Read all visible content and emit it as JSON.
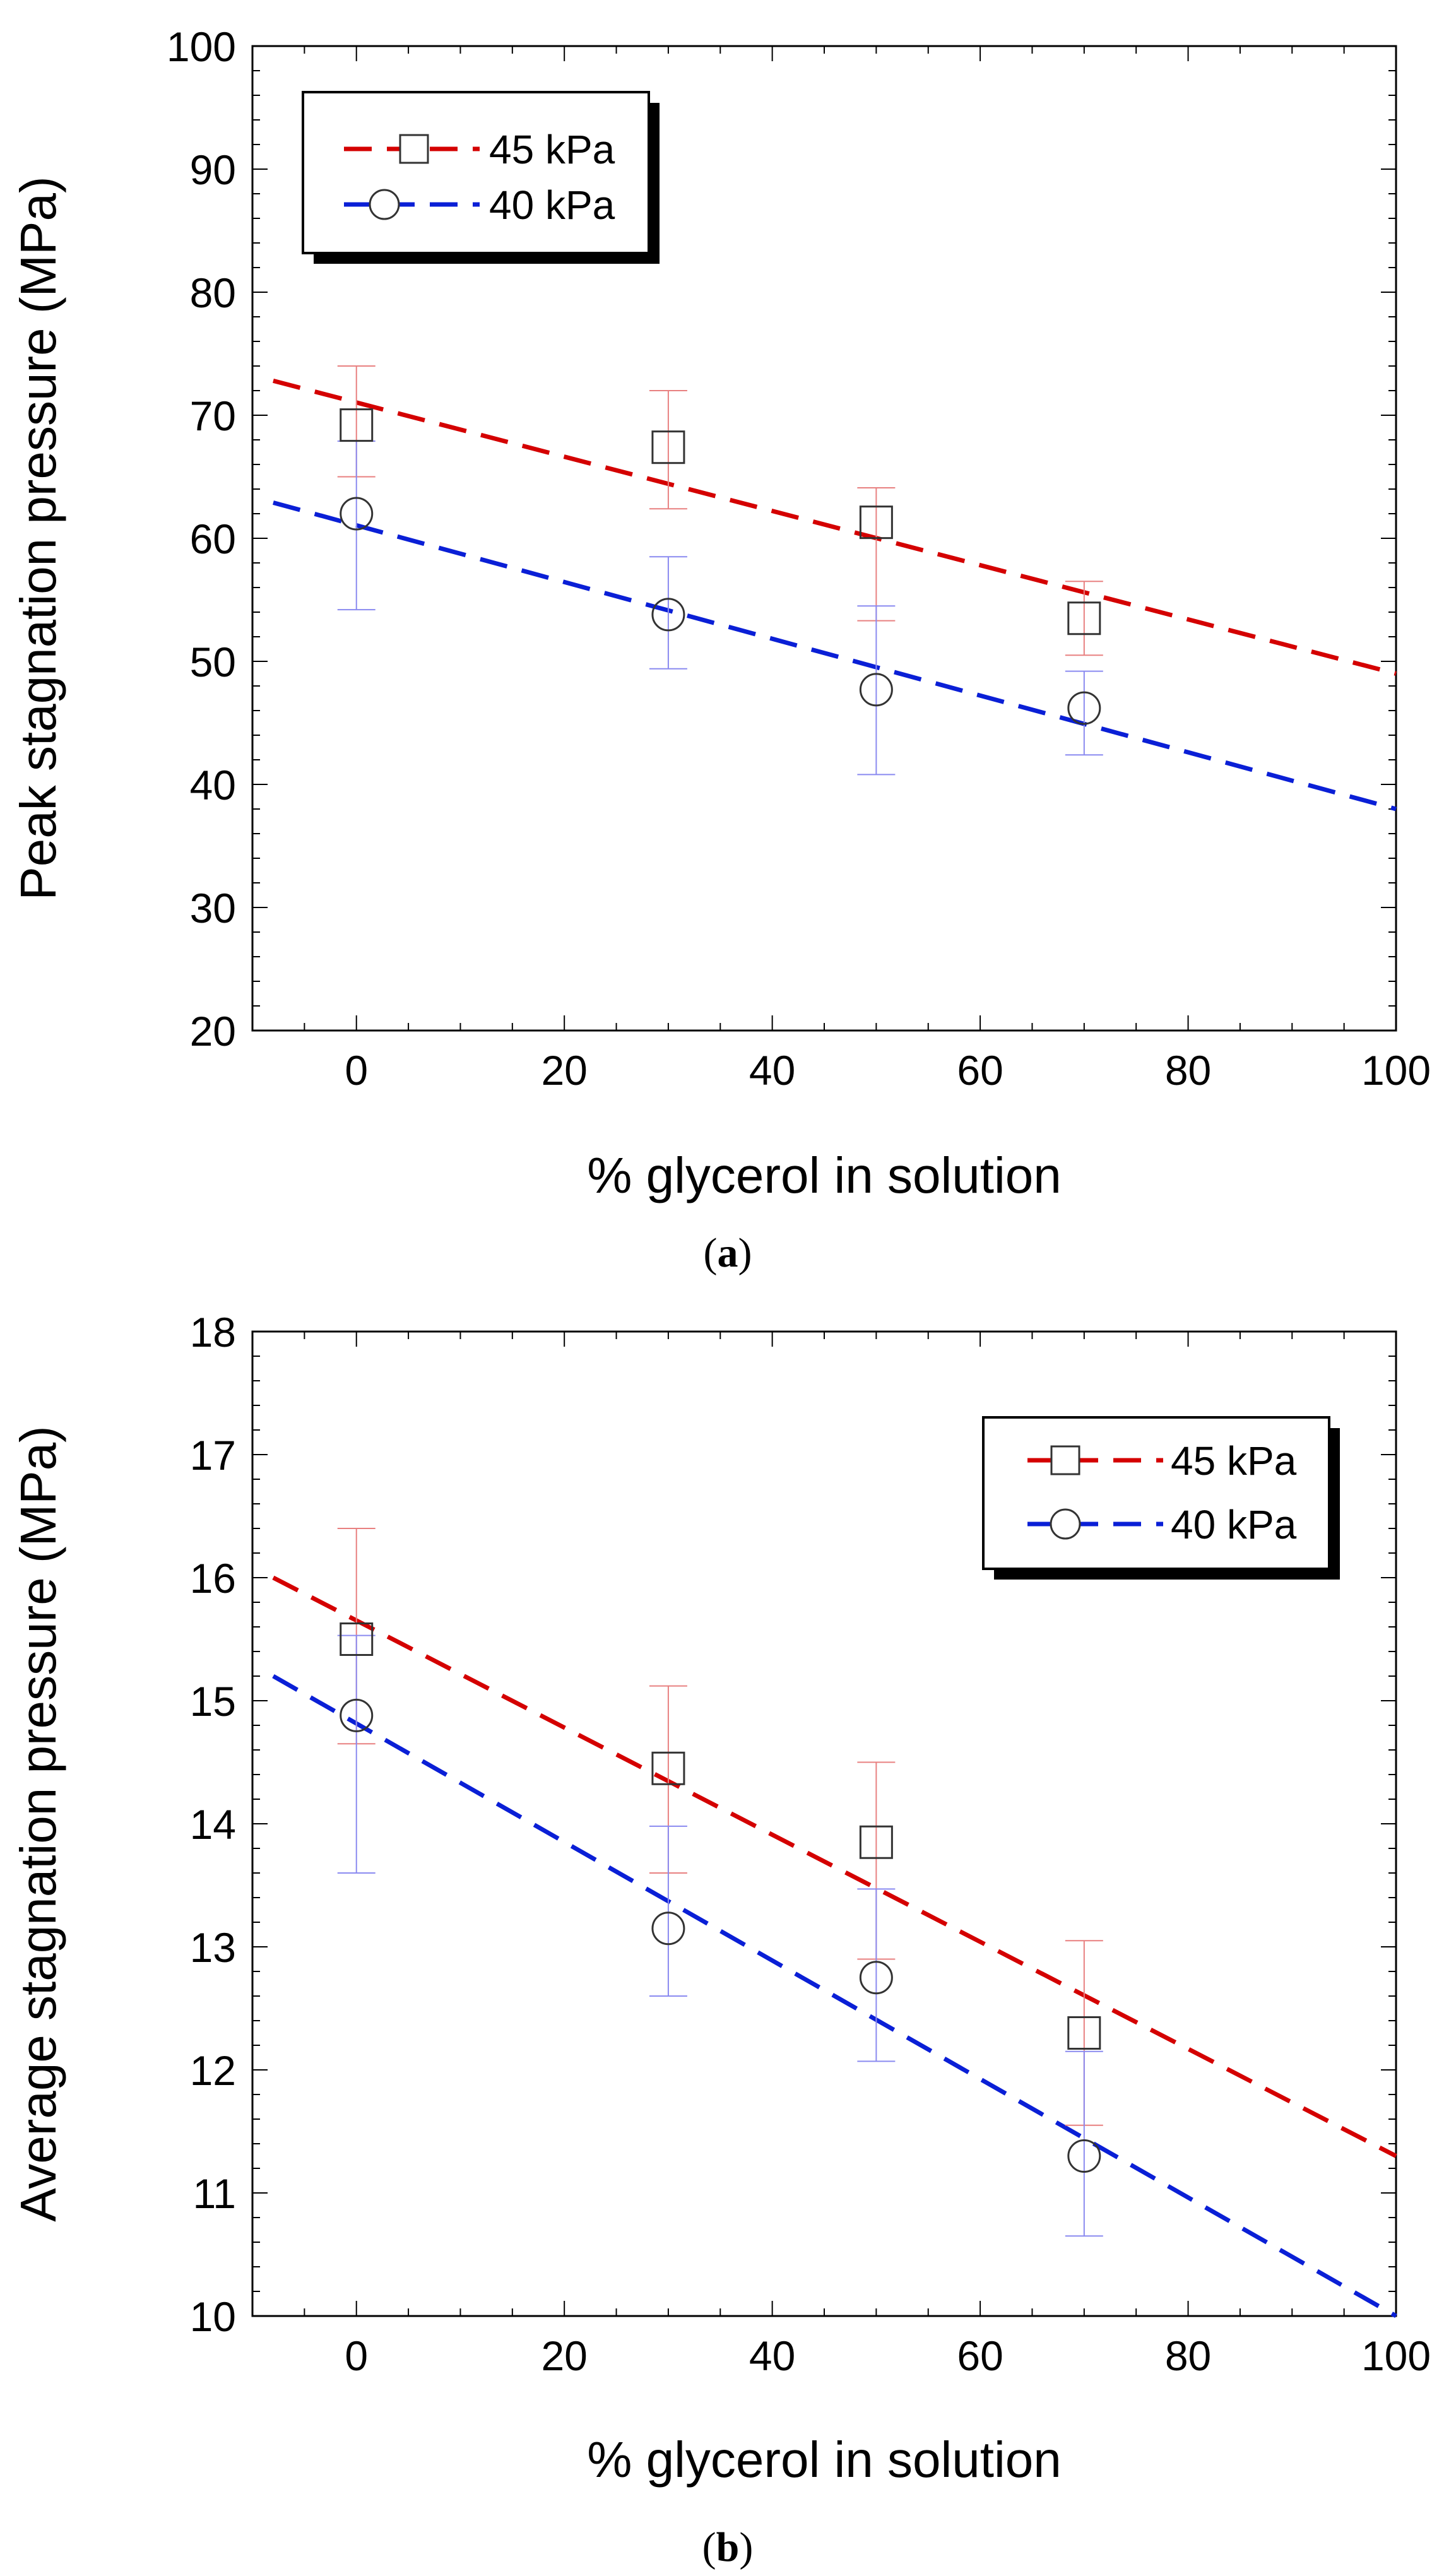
{
  "colors": {
    "red_fit": "#d40000",
    "blue_fit": "#0a1fd6",
    "red_error": "#e88080",
    "blue_error": "#8a8af0",
    "marker": "#333333"
  },
  "chart_data": [
    {
      "type": "scatter",
      "caption_open": "(",
      "caption_letter": "a",
      "caption_close": ")",
      "xlabel": "% glycerol in solution",
      "ylabel": "Peak stagnation pressure (MPa)",
      "xlim": [
        -10,
        100
      ],
      "ylim": [
        20,
        100
      ],
      "xticks": [
        0,
        20,
        40,
        60,
        80,
        100
      ],
      "yticks": [
        20,
        30,
        40,
        50,
        60,
        70,
        80,
        90,
        100
      ],
      "legend_position": "top-left",
      "series": [
        {
          "name": "45 kPa",
          "marker": "square",
          "color": "#d40000",
          "x": [
            0,
            30,
            50,
            70
          ],
          "y": [
            69.2,
            67.4,
            61.3,
            53.5
          ],
          "err_low": [
            4.2,
            5.0,
            8.0,
            3.0
          ],
          "err_high": [
            4.8,
            4.6,
            2.8,
            3.0
          ],
          "fit": {
            "x": [
              -8,
              100
            ],
            "y": [
              72.8,
              49.0
            ]
          }
        },
        {
          "name": "40 kPa",
          "marker": "circle",
          "color": "#0a1fd6",
          "x": [
            0,
            30,
            50,
            70
          ],
          "y": [
            62.0,
            53.8,
            47.7,
            46.2
          ],
          "err_low": [
            7.8,
            4.4,
            6.9,
            3.8
          ],
          "err_high": [
            5.9,
            4.7,
            6.8,
            3.0
          ],
          "fit": {
            "x": [
              -8,
              100
            ],
            "y": [
              62.9,
              38.0
            ]
          }
        }
      ]
    },
    {
      "type": "scatter",
      "caption_open": "(",
      "caption_letter": "b",
      "caption_close": ")",
      "xlabel": "% glycerol in solution",
      "ylabel": "Average stagnation pressure (MPa)",
      "xlim": [
        -10,
        100
      ],
      "ylim": [
        10,
        18
      ],
      "xticks": [
        0,
        20,
        40,
        60,
        80,
        100
      ],
      "yticks": [
        10,
        11,
        12,
        13,
        14,
        15,
        16,
        17,
        18
      ],
      "legend_position": "top-right",
      "series": [
        {
          "name": "45 kPa",
          "marker": "square",
          "color": "#d40000",
          "x": [
            0,
            30,
            50,
            70
          ],
          "y": [
            15.5,
            14.45,
            13.85,
            12.3
          ],
          "err_low": [
            0.85,
            0.85,
            0.95,
            0.75
          ],
          "err_high": [
            0.9,
            0.67,
            0.65,
            0.75
          ],
          "fit": {
            "x": [
              -8,
              100
            ],
            "y": [
              16.0,
              11.3
            ]
          }
        },
        {
          "name": "40 kPa",
          "marker": "circle",
          "color": "#0a1fd6",
          "x": [
            0,
            30,
            50,
            70
          ],
          "y": [
            14.88,
            13.15,
            12.75,
            11.3
          ],
          "err_low": [
            1.28,
            0.55,
            0.68,
            0.65
          ],
          "err_high": [
            0.65,
            0.83,
            0.72,
            0.85
          ],
          "fit": {
            "x": [
              -8,
              100
            ],
            "y": [
              15.2,
              10.0
            ]
          }
        }
      ]
    }
  ]
}
